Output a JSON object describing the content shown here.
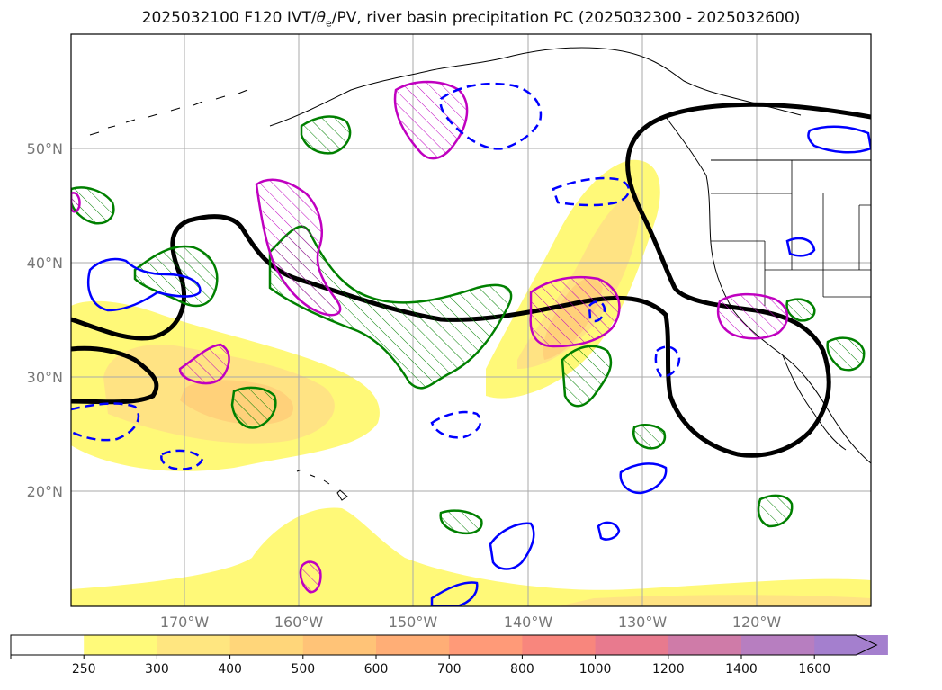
{
  "title": {
    "prefix": "2025032100 F120 IVT/",
    "theta": "θ",
    "theta_sub": "e",
    "suffix": "/PV, river basin precipitation PC (2025032300 - 2025032600)"
  },
  "map": {
    "lat_labels": [
      "50°N",
      "40°N",
      "30°N",
      "20°N"
    ],
    "lon_labels": [
      "170°W",
      "160°W",
      "150°W",
      "140°W",
      "130°W",
      "120°W"
    ],
    "colors": {
      "ivt_fill_1": "#fff978",
      "ivt_fill_2": "#ffe383",
      "ivt_fill_3": "#ffd17a",
      "theta_contour": "#000000",
      "pv_positive": "#c000c0",
      "green_contour": "#008000",
      "blue_contour": "#0000ff"
    }
  },
  "colorbar": {
    "ticks": [
      "250",
      "300",
      "400",
      "500",
      "600",
      "700",
      "800",
      "1000",
      "1200",
      "1400",
      "1600"
    ],
    "colors": [
      "#ffffff",
      "#fffa7a",
      "#ffe680",
      "#ffd67a",
      "#ffc377",
      "#ffae76",
      "#ff9a78",
      "#f8867d",
      "#e87a8e",
      "#cf7ba8",
      "#b77ec0",
      "#a47fce"
    ],
    "extend": "max"
  }
}
